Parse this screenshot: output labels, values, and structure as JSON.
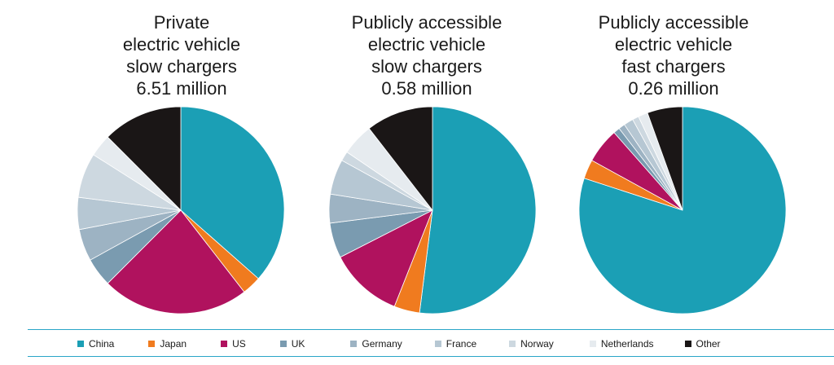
{
  "chart_data": [
    {
      "type": "pie",
      "title": [
        "Private",
        "electric vehicle",
        "slow chargers",
        "6.51 million"
      ],
      "labels": [
        "China",
        "Japan",
        "US",
        "UK",
        "Germany",
        "France",
        "Norway",
        "Netherlands",
        "Other"
      ],
      "values": [
        36.5,
        3.0,
        23.0,
        4.5,
        5.0,
        5.0,
        7.0,
        3.5,
        12.5
      ]
    },
    {
      "type": "pie",
      "title": [
        "Publicly accessible",
        "electric vehicle",
        "slow chargers",
        "0.58 million"
      ],
      "labels": [
        "China",
        "Japan",
        "US",
        "UK",
        "Germany",
        "France",
        "Norway",
        "Netherlands",
        "Other"
      ],
      "values": [
        52.0,
        4.0,
        11.5,
        5.5,
        4.5,
        5.5,
        1.5,
        5.0,
        10.5
      ]
    },
    {
      "type": "pie",
      "title": [
        "Publicly accessible",
        "electric vehicle",
        "fast chargers",
        "0.26 million"
      ],
      "labels": [
        "China",
        "Japan",
        "US",
        "UK",
        "Germany",
        "France",
        "Norway",
        "Netherlands",
        "Other"
      ],
      "values": [
        80.0,
        3.0,
        5.5,
        1.0,
        1.0,
        1.5,
        1.0,
        1.5,
        5.5
      ]
    }
  ],
  "legend": [
    {
      "label": "China",
      "color": "#1b9fb5"
    },
    {
      "label": "Japan",
      "color": "#f07b1f"
    },
    {
      "label": "US",
      "color": "#b0125e"
    },
    {
      "label": "UK",
      "color": "#7a9bb0"
    },
    {
      "label": "Germany",
      "color": "#9db3c3"
    },
    {
      "label": "France",
      "color": "#b6c7d3"
    },
    {
      "label": "Norway",
      "color": "#cdd8e0"
    },
    {
      "label": "Netherlands",
      "color": "#e6ebef"
    },
    {
      "label": "Other",
      "color": "#1a1616"
    }
  ]
}
